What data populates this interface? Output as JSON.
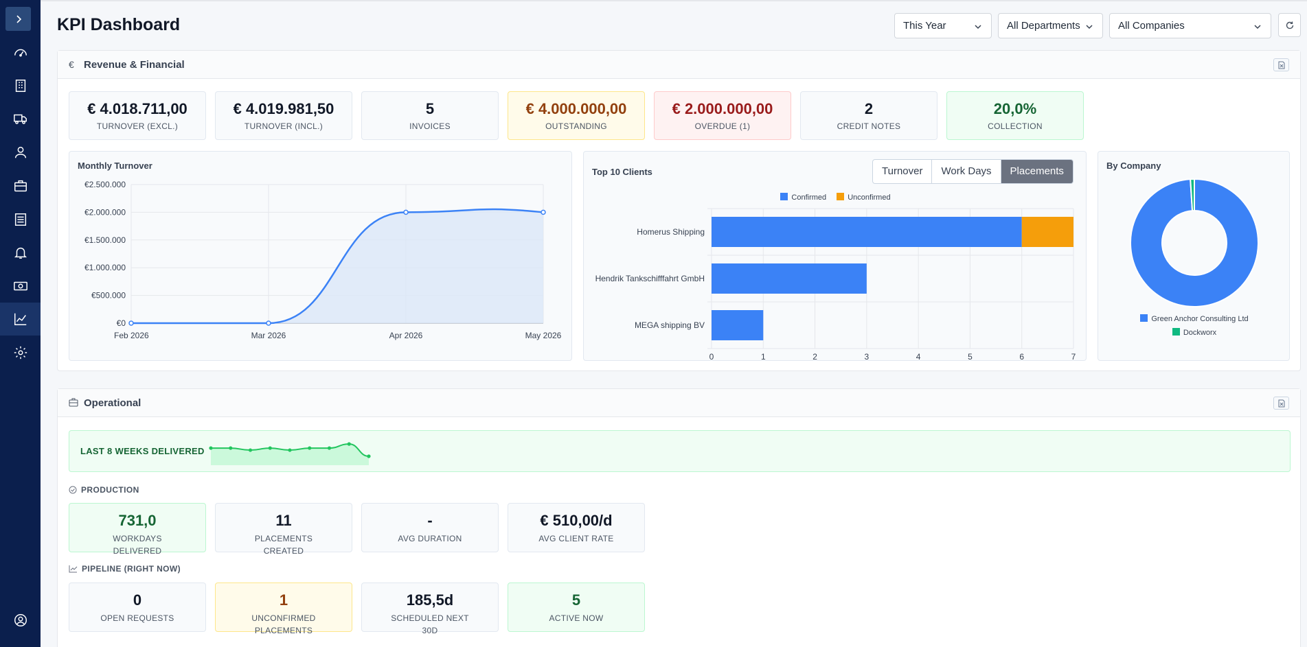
{
  "header": {
    "title": "KPI Dashboard"
  },
  "filters": {
    "period": "This Year",
    "department": "All Departments",
    "company": "All Companies"
  },
  "sidebar": {
    "icons": [
      "dashboard-icon",
      "building-icon",
      "truck-icon",
      "user-icon",
      "briefcase-icon",
      "list-icon",
      "bell-icon",
      "cash-icon",
      "chart-line-icon",
      "gear-icon"
    ],
    "active": "chart-line-icon"
  },
  "revenue": {
    "title": "Revenue & Financial",
    "icon": "€",
    "kpis": [
      {
        "value": "€ 4.018.711,00",
        "label": "TURNOVER (EXCL.)",
        "tone": "neutral"
      },
      {
        "value": "€ 4.019.981,50",
        "label": "TURNOVER (INCL.)",
        "tone": "neutral"
      },
      {
        "value": "5",
        "label": "INVOICES",
        "tone": "neutral"
      },
      {
        "value": "€ 4.000.000,00",
        "label": "OUTSTANDING",
        "tone": "yellow"
      },
      {
        "value": "€ 2.000.000,00",
        "label": "OVERDUE (1)",
        "tone": "red"
      },
      {
        "value": "2",
        "label": "CREDIT NOTES",
        "tone": "neutral"
      },
      {
        "value": "20,0%",
        "label": "COLLECTION",
        "tone": "green"
      }
    ],
    "monthly": {
      "title": "Monthly Turnover"
    },
    "top_clients": {
      "title": "Top 10 Clients",
      "tabs": [
        "Turnover",
        "Work Days",
        "Placements"
      ],
      "active_tab": "Placements"
    },
    "by_company": {
      "title": "By Company"
    }
  },
  "chart_data": [
    {
      "type": "area",
      "title": "Monthly Turnover",
      "x": [
        "Feb 2026",
        "Mar 2026",
        "Apr 2026",
        "May 2026"
      ],
      "values": [
        0,
        0,
        2000000,
        2000000
      ],
      "ylim": [
        0,
        2500000
      ],
      "yticks": [
        "€0",
        "€500.000",
        "€1.000.000",
        "€1.500.000",
        "€2.000.000",
        "€2.500.000"
      ],
      "grid": true,
      "color": "#3b82f6"
    },
    {
      "type": "bar",
      "orientation": "horizontal",
      "stacked": true,
      "title": "Top 10 Clients",
      "categories": [
        "Homerus Shipping",
        "Hendrik Tankschifffahrt GmbH",
        "MEGA shipping BV"
      ],
      "series": [
        {
          "name": "Confirmed",
          "values": [
            6,
            3,
            1
          ],
          "color": "#3b82f6"
        },
        {
          "name": "Unconfirmed",
          "values": [
            1,
            0,
            0
          ],
          "color": "#f59e0b"
        }
      ],
      "xlim": [
        0,
        7
      ],
      "xticks": [
        "0",
        "1",
        "2",
        "3",
        "4",
        "5",
        "6",
        "7"
      ],
      "legend": "top"
    },
    {
      "type": "pie",
      "donut": true,
      "title": "By Company",
      "labels": [
        "Green Anchor Consulting Ltd",
        "Dockworx"
      ],
      "values": [
        99,
        1
      ],
      "colors": [
        "#3b82f6",
        "#10b981"
      ],
      "legend": "bottom"
    },
    {
      "type": "line",
      "title": "Last 8 Weeks Delivered",
      "values": [
        5,
        5,
        4,
        5,
        4,
        5,
        5,
        7,
        1
      ],
      "color": "#22c55e"
    }
  ],
  "operational": {
    "title": "Operational",
    "weeks_label": "LAST 8 WEEKS DELIVERED",
    "production": {
      "title": "PRODUCTION",
      "kpis": [
        {
          "value": "731,0",
          "label": "WORKDAYS DELIVERED",
          "tone": "green"
        },
        {
          "value": "11",
          "label": "PLACEMENTS CREATED",
          "tone": "neutral"
        },
        {
          "value": "-",
          "label": "AVG DURATION",
          "tone": "neutral"
        },
        {
          "value": "€ 510,00/d",
          "label": "AVG CLIENT RATE",
          "tone": "neutral"
        }
      ]
    },
    "pipeline": {
      "title": "PIPELINE (RIGHT NOW)",
      "kpis": [
        {
          "value": "0",
          "label": "OPEN REQUESTS",
          "tone": "neutral"
        },
        {
          "value": "1",
          "label": "UNCONFIRMED PLACEMENTS",
          "tone": "yellow"
        },
        {
          "value": "185,5d",
          "label": "SCHEDULED NEXT 30D",
          "tone": "neutral"
        },
        {
          "value": "5",
          "label": "ACTIVE NOW",
          "tone": "green"
        }
      ]
    }
  }
}
